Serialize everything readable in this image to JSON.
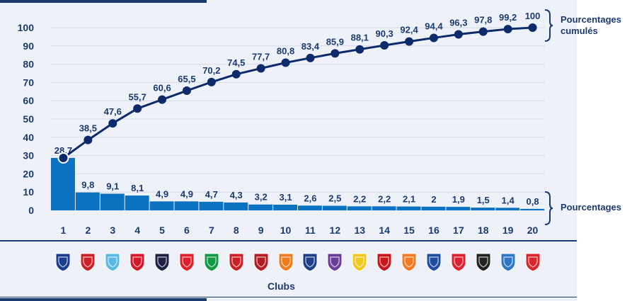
{
  "chart_data": {
    "type": "bar+line",
    "categories": [
      "1",
      "2",
      "3",
      "4",
      "5",
      "6",
      "7",
      "8",
      "9",
      "10",
      "11",
      "12",
      "13",
      "14",
      "15",
      "16",
      "17",
      "18",
      "19",
      "20"
    ],
    "series": [
      {
        "name": "Pourcentages",
        "type": "bar",
        "values": [
          28.7,
          9.8,
          9.1,
          8.1,
          4.9,
          4.9,
          4.7,
          4.3,
          3.2,
          3.1,
          2.6,
          2.5,
          2.2,
          2.2,
          2.1,
          2.0,
          1.9,
          1.5,
          1.4,
          0.8
        ],
        "labels": [
          "28,7",
          "9,8",
          "9,1",
          "8,1",
          "4,9",
          "4,9",
          "4,7",
          "4,3",
          "3,2",
          "3,1",
          "2,6",
          "2,5",
          "2,2",
          "2,2",
          "2,1",
          "2",
          "1,9",
          "1,5",
          "1,4",
          "0,8"
        ]
      },
      {
        "name": "Pourcentages cumulés",
        "type": "line",
        "values": [
          28.7,
          38.5,
          47.6,
          55.7,
          60.6,
          65.5,
          70.2,
          74.5,
          77.7,
          80.8,
          83.4,
          85.9,
          88.1,
          90.3,
          92.4,
          94.4,
          96.3,
          97.8,
          99.2,
          100
        ],
        "labels": [
          "",
          "38,5",
          "47,6",
          "55,7",
          "60,6",
          "65,5",
          "70,2",
          "74,5",
          "77,7",
          "80,8",
          "83,4",
          "85,9",
          "88,1",
          "90,3",
          "92,4",
          "94,4",
          "96,3",
          "97,8",
          "99,2",
          "100"
        ]
      }
    ],
    "y_ticks": [
      "0",
      "10",
      "20",
      "30",
      "40",
      "50",
      "60",
      "70",
      "80",
      "90",
      "100"
    ],
    "ylim": [
      0,
      100
    ],
    "xlabel": "Clubs",
    "grid": true,
    "legend_brackets": [
      "Pourcentages cumulés",
      "Pourcentages"
    ],
    "colors": {
      "bar": "#0a72c1",
      "line": "#0d2b6b",
      "text": "#1b3a6e",
      "panel": "#eef1f8",
      "grid": "#d7dbe5"
    }
  },
  "club_logos": [
    {
      "icon": "psg-logo",
      "color": "#1a3d8f"
    },
    {
      "icon": "lyon-logo",
      "color": "#cf2027"
    },
    {
      "icon": "marseille-logo",
      "color": "#5bb8e6"
    },
    {
      "icon": "monaco-logo",
      "color": "#d6182a"
    },
    {
      "icon": "bordeaux-logo",
      "color": "#1b2344"
    },
    {
      "icon": "lille-logo",
      "color": "#e21e2d"
    },
    {
      "icon": "saint-etienne-logo",
      "color": "#109a43"
    },
    {
      "icon": "rennes-logo",
      "color": "#cc1f26"
    },
    {
      "icon": "nice-logo",
      "color": "#b31c22"
    },
    {
      "icon": "montpellier-logo",
      "color": "#f07c1b"
    },
    {
      "icon": "caen-logo",
      "color": "#1d3f8a"
    },
    {
      "icon": "toulouse-logo",
      "color": "#6a3d96"
    },
    {
      "icon": "nantes-logo",
      "color": "#f2c81f"
    },
    {
      "icon": "guingamp-logo",
      "color": "#c9161d"
    },
    {
      "icon": "lorient-logo",
      "color": "#f47920"
    },
    {
      "icon": "bastia-logo",
      "color": "#1d4ea1"
    },
    {
      "icon": "reims-logo",
      "color": "#dd2032"
    },
    {
      "icon": "angers-logo",
      "color": "#222222"
    },
    {
      "icon": "troyes-logo",
      "color": "#2f77c6"
    },
    {
      "icon": "gazelec-ajaccio-logo",
      "color": "#d8262c"
    }
  ]
}
